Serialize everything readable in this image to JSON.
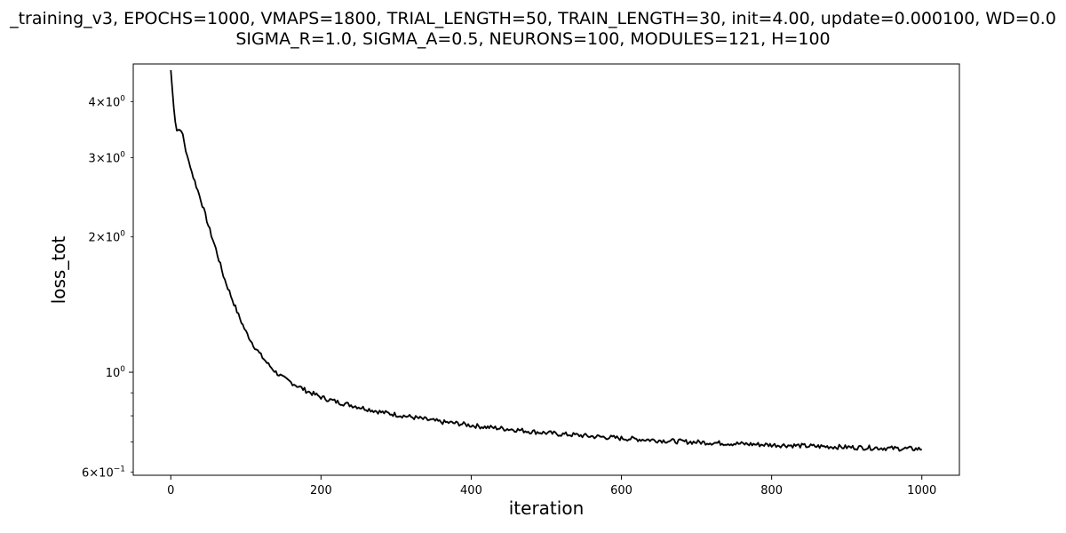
{
  "chart_data": {
    "type": "line",
    "title_lines": [
      "_training_v3, EPOCHS=1000, VMAPS=1800, TRIAL_LENGTH=50, TRAIN_LENGTH=30, init=4.00, update=0.000100, WD=0.0",
      "SIGMA_R=1.0, SIGMA_A=0.5, NEURONS=100, MODULES=121, H=100"
    ],
    "xlabel": "iteration",
    "ylabel": "loss_tot",
    "xlim": [
      -50,
      1050
    ],
    "ylim": [
      0.59,
      4.85
    ],
    "yscale": "log",
    "grid": false,
    "legend": "none",
    "x_ticks": [
      {
        "value": 0,
        "label": "0"
      },
      {
        "value": 200,
        "label": "200"
      },
      {
        "value": 400,
        "label": "400"
      },
      {
        "value": 600,
        "label": "600"
      },
      {
        "value": 800,
        "label": "800"
      },
      {
        "value": 1000,
        "label": "1000"
      }
    ],
    "y_ticks_major": [
      {
        "value": 1.0,
        "mantissa": "10",
        "exponent": "0",
        "coef": ""
      }
    ],
    "y_ticks_minor": [
      {
        "value": 0.6,
        "coef": "6",
        "mantissa": "10",
        "exponent": "−1"
      },
      {
        "value": 0.7,
        "coef": "",
        "mantissa": "",
        "exponent": ""
      },
      {
        "value": 0.8,
        "coef": "",
        "mantissa": "",
        "exponent": ""
      },
      {
        "value": 0.9,
        "coef": "",
        "mantissa": "",
        "exponent": ""
      },
      {
        "value": 2.0,
        "coef": "2",
        "mantissa": "10",
        "exponent": "0"
      },
      {
        "value": 3.0,
        "coef": "3",
        "mantissa": "10",
        "exponent": "0"
      },
      {
        "value": 4.0,
        "coef": "4",
        "mantissa": "10",
        "exponent": "0"
      }
    ],
    "series": [
      {
        "color": "#000000",
        "band_color": "#aaaaaa",
        "x": [
          0,
          2,
          5,
          8,
          12,
          16,
          20,
          25,
          30,
          40,
          50,
          60,
          70,
          80,
          90,
          100,
          110,
          120,
          130,
          140,
          150,
          160,
          170,
          180,
          190,
          200,
          220,
          240,
          260,
          280,
          300,
          320,
          340,
          360,
          380,
          400,
          420,
          440,
          460,
          480,
          500,
          520,
          540,
          560,
          580,
          600,
          620,
          640,
          660,
          680,
          700,
          720,
          740,
          760,
          780,
          800,
          820,
          840,
          860,
          880,
          900,
          920,
          940,
          960,
          980,
          1000
        ],
        "y": [
          4.7,
          4.25,
          3.7,
          3.45,
          3.47,
          3.38,
          3.1,
          2.9,
          2.72,
          2.42,
          2.12,
          1.88,
          1.64,
          1.48,
          1.34,
          1.23,
          1.15,
          1.09,
          1.04,
          1.0,
          0.97,
          0.95,
          0.93,
          0.91,
          0.895,
          0.88,
          0.86,
          0.845,
          0.83,
          0.815,
          0.805,
          0.795,
          0.785,
          0.775,
          0.77,
          0.762,
          0.755,
          0.75,
          0.745,
          0.738,
          0.733,
          0.728,
          0.725,
          0.72,
          0.717,
          0.713,
          0.71,
          0.707,
          0.704,
          0.701,
          0.699,
          0.697,
          0.695,
          0.693,
          0.691,
          0.689,
          0.688,
          0.686,
          0.684,
          0.683,
          0.681,
          0.68,
          0.679,
          0.677,
          0.676,
          0.675
        ]
      }
    ]
  }
}
